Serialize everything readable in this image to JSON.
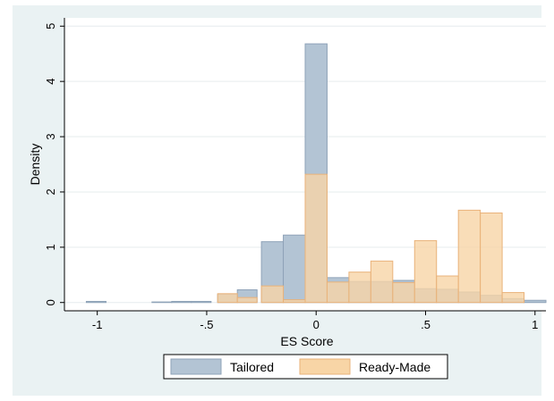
{
  "chart_data": {
    "type": "bar",
    "title": "",
    "xlabel": "ES Score",
    "ylabel": "Density",
    "xlim": [
      -1.15,
      1.05
    ],
    "ylim": [
      -0.15,
      5.15
    ],
    "xticks": [
      {
        "value": -1,
        "label": "-1"
      },
      {
        "value": -0.5,
        "label": "-.5"
      },
      {
        "value": 0,
        "label": "0"
      },
      {
        "value": 0.5,
        "label": ".5"
      },
      {
        "value": 1,
        "label": "1"
      }
    ],
    "yticks": [
      {
        "value": 0,
        "label": "0"
      },
      {
        "value": 1,
        "label": "1"
      },
      {
        "value": 2,
        "label": "2"
      },
      {
        "value": 3,
        "label": "3"
      },
      {
        "value": 4,
        "label": "4"
      },
      {
        "value": 5,
        "label": "5"
      }
    ],
    "grid": true,
    "legend_position": "bottom",
    "series": [
      {
        "name": "Tailored",
        "fill": "#b3c4d4",
        "stroke": "#8fa3b8",
        "bars": [
          {
            "x0": -1.05,
            "x1": -0.96,
            "y": 0.02
          },
          {
            "x0": -0.75,
            "x1": -0.66,
            "y": 0.01
          },
          {
            "x0": -0.66,
            "x1": -0.57,
            "y": 0.02
          },
          {
            "x0": -0.57,
            "x1": -0.48,
            "y": 0.02
          },
          {
            "x0": -0.45,
            "x1": -0.36,
            "y": 0.15
          },
          {
            "x0": -0.36,
            "x1": -0.27,
            "y": 0.23
          },
          {
            "x0": -0.25,
            "x1": -0.15,
            "y": 1.1
          },
          {
            "x0": -0.15,
            "x1": -0.05,
            "y": 1.22
          },
          {
            "x0": -0.05,
            "x1": 0.05,
            "y": 4.68
          },
          {
            "x0": 0.05,
            "x1": 0.15,
            "y": 0.45
          },
          {
            "x0": 0.15,
            "x1": 0.25,
            "y": 0.38
          },
          {
            "x0": 0.25,
            "x1": 0.35,
            "y": 0.38
          },
          {
            "x0": 0.35,
            "x1": 0.45,
            "y": 0.4
          },
          {
            "x0": 0.45,
            "x1": 0.55,
            "y": 0.25
          },
          {
            "x0": 0.55,
            "x1": 0.65,
            "y": 0.24
          },
          {
            "x0": 0.65,
            "x1": 0.75,
            "y": 0.19
          },
          {
            "x0": 0.75,
            "x1": 0.85,
            "y": 0.13
          },
          {
            "x0": 0.85,
            "x1": 0.95,
            "y": 0.07
          },
          {
            "x0": 0.95,
            "x1": 1.05,
            "y": 0.04
          }
        ]
      },
      {
        "name": "Ready-Made",
        "fill": "#f8d5a6",
        "stroke": "#e9b27a",
        "bars": [
          {
            "x0": -0.45,
            "x1": -0.36,
            "y": 0.16
          },
          {
            "x0": -0.36,
            "x1": -0.27,
            "y": 0.09
          },
          {
            "x0": -0.25,
            "x1": -0.15,
            "y": 0.3
          },
          {
            "x0": -0.15,
            "x1": -0.05,
            "y": 0.05
          },
          {
            "x0": -0.05,
            "x1": 0.05,
            "y": 2.32
          },
          {
            "x0": 0.05,
            "x1": 0.15,
            "y": 0.37
          },
          {
            "x0": 0.15,
            "x1": 0.25,
            "y": 0.55
          },
          {
            "x0": 0.25,
            "x1": 0.35,
            "y": 0.75
          },
          {
            "x0": 0.35,
            "x1": 0.45,
            "y": 0.36
          },
          {
            "x0": 0.45,
            "x1": 0.55,
            "y": 1.12
          },
          {
            "x0": 0.55,
            "x1": 0.65,
            "y": 0.48
          },
          {
            "x0": 0.65,
            "x1": 0.75,
            "y": 1.67
          },
          {
            "x0": 0.75,
            "x1": 0.85,
            "y": 1.62
          },
          {
            "x0": 0.85,
            "x1": 0.95,
            "y": 0.18
          }
        ]
      }
    ]
  }
}
